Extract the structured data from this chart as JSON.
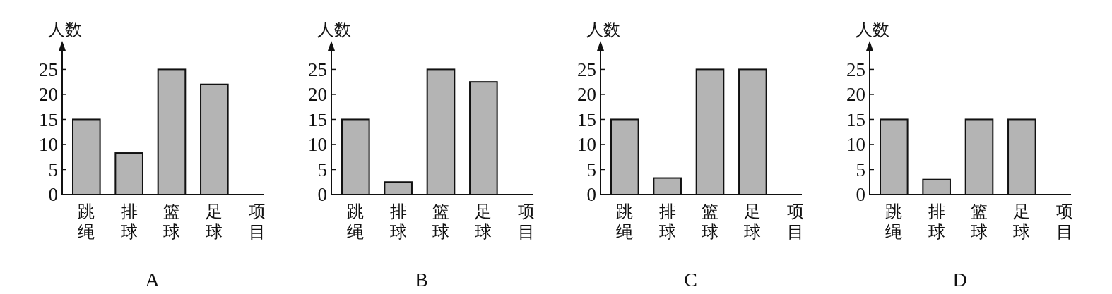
{
  "chart_data": [
    {
      "type": "bar",
      "title": "A",
      "xlabel": "项目",
      "ylabel": "人数",
      "categories": [
        "跳绳",
        "排球",
        "篮球",
        "足球"
      ],
      "values": [
        15,
        8.3,
        25,
        22
      ],
      "color": "#b4b4b4",
      "ylim": [
        0,
        29
      ],
      "yticks": [
        0,
        5,
        10,
        15,
        20,
        25
      ],
      "grid": false
    },
    {
      "type": "bar",
      "title": "B",
      "xlabel": "项目",
      "ylabel": "人数",
      "categories": [
        "跳绳",
        "排球",
        "篮球",
        "足球"
      ],
      "values": [
        15,
        2.5,
        25,
        22.5
      ],
      "color": "#b4b4b4",
      "ylim": [
        0,
        29
      ],
      "yticks": [
        0,
        5,
        10,
        15,
        20,
        25
      ],
      "grid": false
    },
    {
      "type": "bar",
      "title": "C",
      "xlabel": "项目",
      "ylabel": "人数",
      "categories": [
        "跳绳",
        "排球",
        "篮球",
        "足球"
      ],
      "values": [
        15,
        3.3,
        25,
        25
      ],
      "color": "#b4b4b4",
      "ylim": [
        0,
        29
      ],
      "yticks": [
        0,
        5,
        10,
        15,
        20,
        25
      ],
      "grid": false
    },
    {
      "type": "bar",
      "title": "D",
      "xlabel": "项目",
      "ylabel": "人数",
      "categories": [
        "跳绳",
        "排球",
        "篮球",
        "足球"
      ],
      "values": [
        15,
        3,
        15,
        15
      ],
      "color": "#b4b4b4",
      "ylim": [
        0,
        29
      ],
      "yticks": [
        0,
        5,
        10,
        15,
        20,
        25
      ],
      "grid": false
    }
  ]
}
